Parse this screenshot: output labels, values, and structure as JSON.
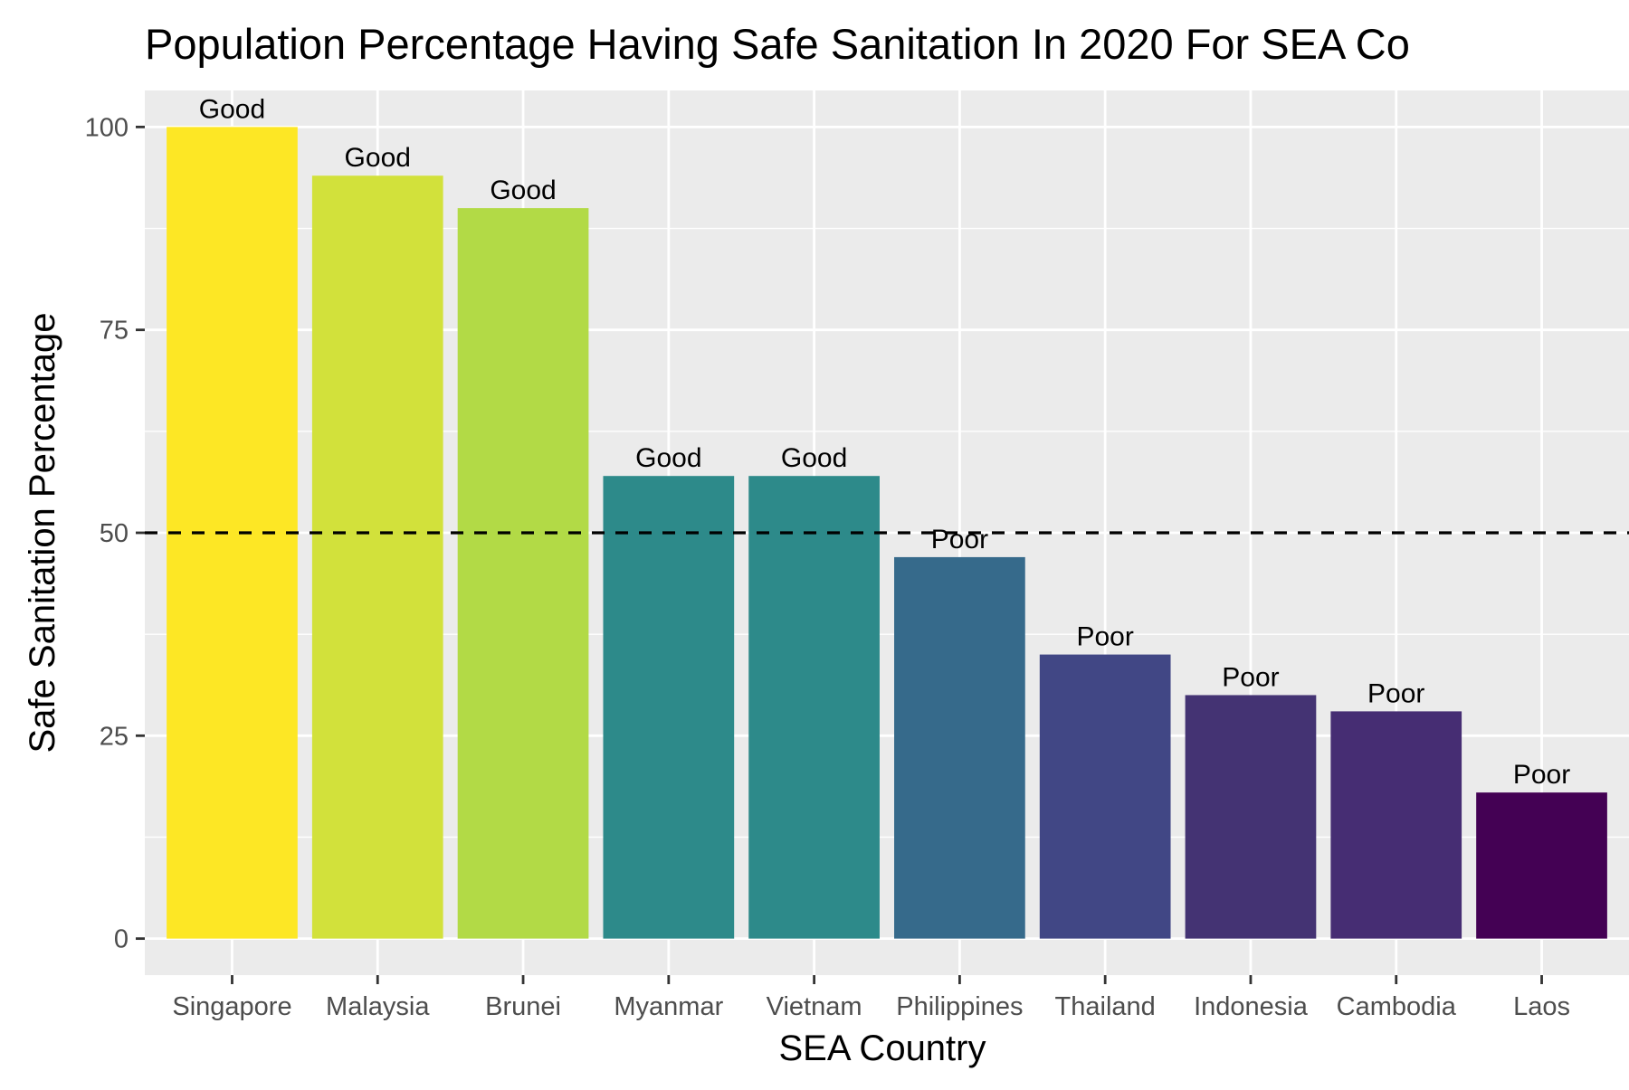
{
  "chart_data": {
    "type": "bar",
    "title": "Population Percentage Having Safe Sanitation In 2020 For SEA Co",
    "xlabel": "SEA Country",
    "ylabel": "Safe Sanitation Percentage",
    "categories": [
      "Singapore",
      "Malaysia",
      "Brunei",
      "Myanmar",
      "Vietnam",
      "Philippines",
      "Thailand",
      "Indonesia",
      "Cambodia",
      "Laos"
    ],
    "values": [
      100,
      94,
      90,
      57,
      57,
      47,
      35,
      30,
      28,
      18
    ],
    "bar_labels": [
      "Good",
      "Good",
      "Good",
      "Good",
      "Good",
      "Poor",
      "Poor",
      "Poor",
      "Poor",
      "Poor"
    ],
    "bar_colors": [
      "#FDE725",
      "#D2E13B",
      "#B2DA46",
      "#2D8A8A",
      "#2D8A8A",
      "#366A8B",
      "#414785",
      "#443373",
      "#462D73",
      "#440154"
    ],
    "reference_line": {
      "value": 50,
      "style": "dashed",
      "color": "#000000"
    },
    "y_ticks": [
      0,
      25,
      50,
      75,
      100
    ],
    "ylim": [
      -4.5,
      104.5
    ],
    "grid": true,
    "panel_background": "#EBEBEB",
    "legend": "none"
  }
}
